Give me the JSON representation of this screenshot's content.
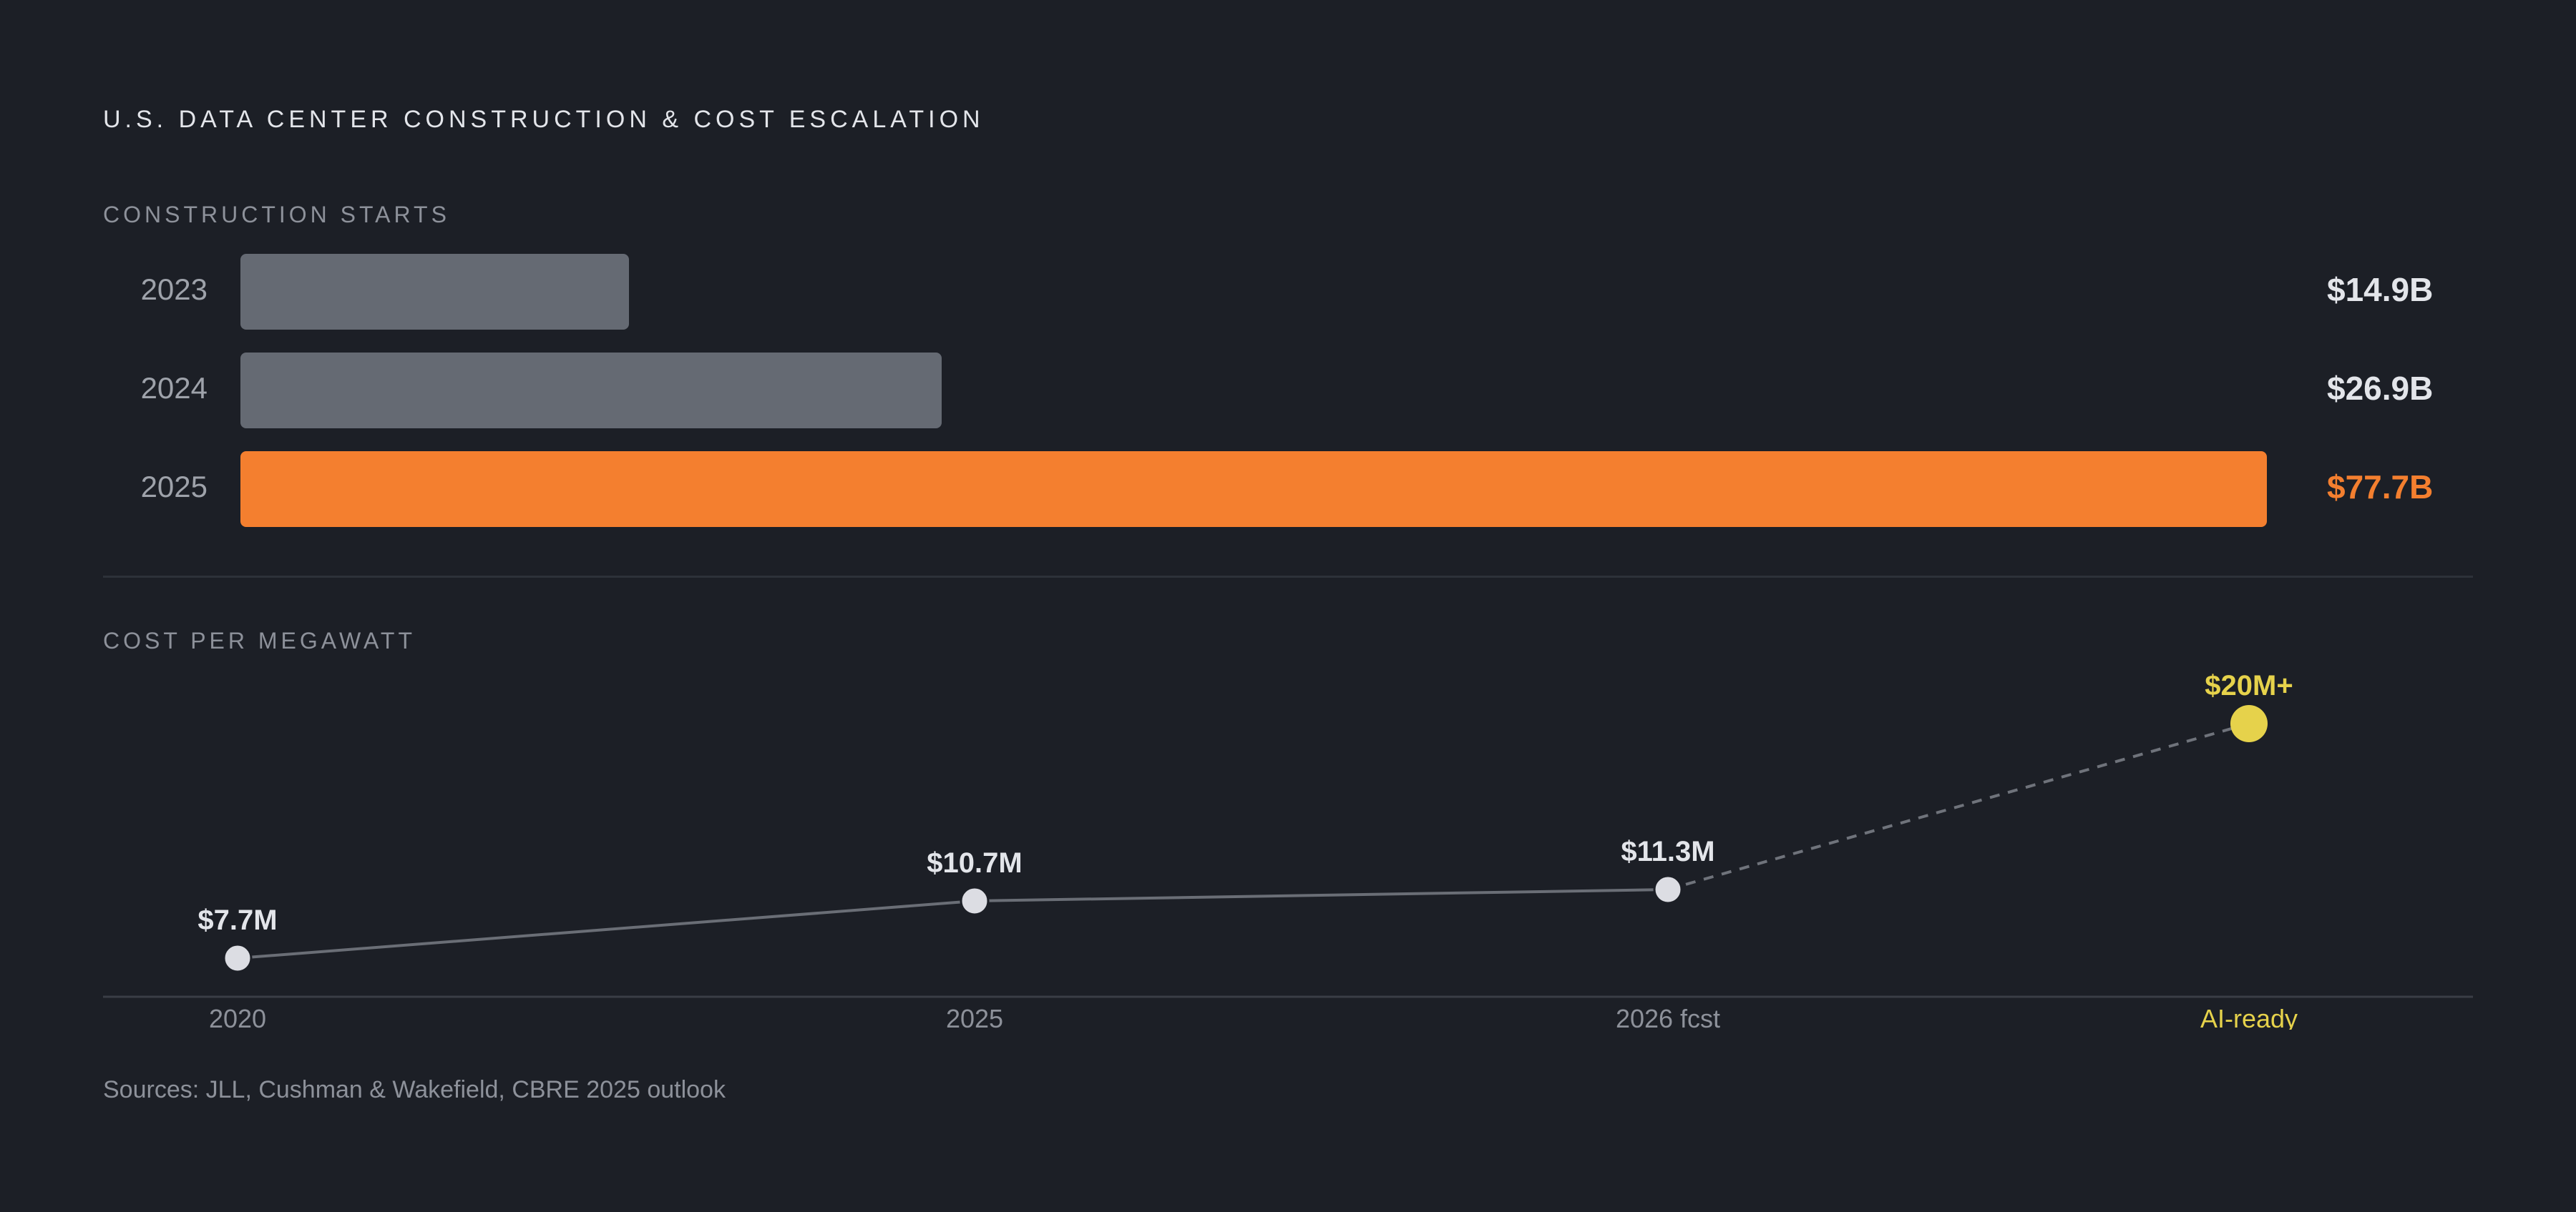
{
  "title": "U.S. DATA CENTER CONSTRUCTION & COST ESCALATION",
  "sources": "Sources: JLL, Cushman & Wakefield, CBRE 2025 outlook",
  "colors": {
    "background": "#1c1f26",
    "bar_default": "#656a73",
    "bar_highlight": "#f47f2f",
    "value_default": "#e3e5ea",
    "line_point": "#dcdde3",
    "forecast_point": "#e6d24b"
  },
  "chart_data": [
    {
      "type": "bar",
      "orientation": "horizontal",
      "title": "CONSTRUCTION STARTS",
      "categories": [
        "2023",
        "2024",
        "2025"
      ],
      "values": [
        14.9,
        26.9,
        77.7
      ],
      "value_labels": [
        "$14.9B",
        "$26.9B",
        "$77.7B"
      ],
      "unit": "$B",
      "highlight_index": 2,
      "xlim": [
        0,
        77.7
      ],
      "grid": false
    },
    {
      "type": "line",
      "title": "COST PER MEGAWATT",
      "categories": [
        "2020",
        "2025",
        "2026 fcst",
        "AI-ready"
      ],
      "values": [
        7.7,
        10.7,
        11.3,
        20
      ],
      "value_labels": [
        "$7.7M",
        "$10.7M",
        "$11.3M",
        "$20M+"
      ],
      "unit": "$M",
      "dashed_from_index": 2,
      "highlight_index": 3,
      "grid": false
    }
  ]
}
